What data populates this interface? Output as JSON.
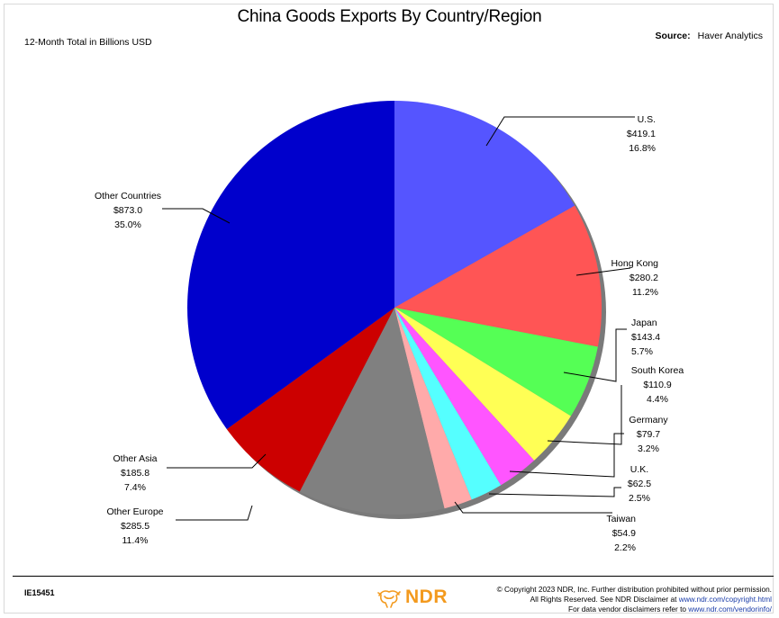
{
  "header": {
    "title": "China Goods Exports By Country/Region",
    "subtitle": "12-Month Total in Billions USD",
    "source_label": "Source:",
    "source_value": "Haver Analytics"
  },
  "chart_data": {
    "type": "pie",
    "title": "China Goods Exports By Country/Region",
    "unit": "Billions USD",
    "slices": [
      {
        "label": "U.S.",
        "value": 419.1,
        "value_text": "$419.1",
        "pct_text": "16.8%",
        "color": "#5555ff"
      },
      {
        "label": "Hong Kong",
        "value": 280.2,
        "value_text": "$280.2",
        "pct_text": "11.2%",
        "color": "#ff5555"
      },
      {
        "label": "Japan",
        "value": 143.4,
        "value_text": "$143.4",
        "pct_text": "5.7%",
        "color": "#55ff55"
      },
      {
        "label": "South Korea",
        "value": 110.9,
        "value_text": "$110.9",
        "pct_text": "4.4%",
        "color": "#ffff55"
      },
      {
        "label": "Germany",
        "value": 79.7,
        "value_text": "$79.7",
        "pct_text": "3.2%",
        "color": "#ff55ff"
      },
      {
        "label": "U.K.",
        "value": 62.5,
        "value_text": "$62.5",
        "pct_text": "2.5%",
        "color": "#55ffff"
      },
      {
        "label": "Taiwan",
        "value": 54.9,
        "value_text": "$54.9",
        "pct_text": "2.2%",
        "color": "#ffaaaa"
      },
      {
        "label": "Other Europe",
        "value": 285.5,
        "value_text": "$285.5",
        "pct_text": "11.4%",
        "color": "#808080"
      },
      {
        "label": "Other Asia",
        "value": 185.8,
        "value_text": "$185.8",
        "pct_text": "7.4%",
        "color": "#cc0000"
      },
      {
        "label": "Other Countries",
        "value": 873.0,
        "value_text": "$873.0",
        "pct_text": "35.0%",
        "color": "#0000cc"
      }
    ]
  },
  "footer": {
    "doc_id": "IE15451",
    "logo_text": "NDR",
    "copyright_line1": "© Copyright 2023 NDR, Inc. Further distribution prohibited without prior permission.",
    "copyright_line2_prefix": "All Rights Reserved. See NDR Disclaimer at ",
    "copyright_line2_link": "www.ndr.com/copyright.html",
    "copyright_line3_prefix": "For data vendor disclaimers refer to ",
    "copyright_line3_link": "www.ndr.com/vendorinfo/"
  }
}
